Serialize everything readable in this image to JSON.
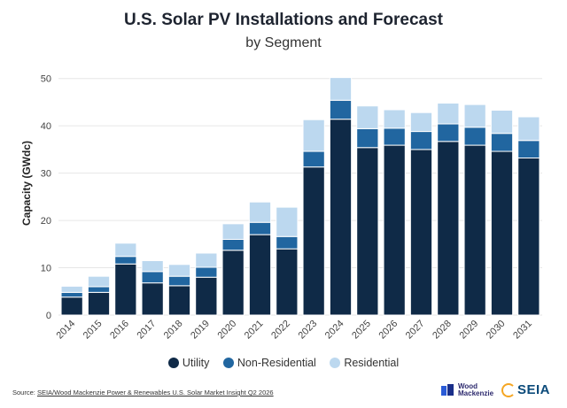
{
  "header": {
    "title": "U.S. Solar PV Installations and Forecast",
    "subtitle": "by Segment"
  },
  "legend": {
    "items": [
      {
        "label": "Utility",
        "color": "#0f2a47"
      },
      {
        "label": "Non-Residential",
        "color": "#2166a0"
      },
      {
        "label": "Residential",
        "color": "#bcd8ef"
      }
    ]
  },
  "footer": {
    "source_prefix": "Source: ",
    "source_text": "SEIA/Wood Mackenzie Power & Renewables U.S. Solar Market Insight Q2 2026",
    "wm_logo_line1": "Wood",
    "wm_logo_line2": "Mackenzie",
    "seia_logo": "SEIA"
  },
  "chart_data": {
    "type": "bar",
    "stacked": true,
    "title": "U.S. Solar PV Installations and Forecast",
    "subtitle": "by Segment",
    "xlabel": "",
    "ylabel": "Capacity (GWdc)",
    "ylim": [
      0,
      52
    ],
    "yticks": [
      0,
      10,
      20,
      30,
      40,
      50
    ],
    "grid": true,
    "legend_position": "bottom",
    "categories": [
      "2014",
      "2015",
      "2016",
      "2017",
      "2018",
      "2019",
      "2020",
      "2021",
      "2022",
      "2023",
      "2024",
      "2025",
      "2026",
      "2027",
      "2028",
      "2029",
      "2030",
      "2031"
    ],
    "series": [
      {
        "name": "Utility",
        "color": "#0f2a47",
        "values": [
          3.8,
          4.8,
          10.8,
          6.8,
          6.2,
          8.0,
          13.7,
          17.0,
          14.0,
          31.3,
          41.4,
          35.4,
          35.9,
          35.0,
          36.7,
          35.9,
          34.6,
          33.2
        ]
      },
      {
        "name": "Non-Residential",
        "color": "#2166a0",
        "values": [
          1.0,
          1.2,
          1.6,
          2.4,
          2.0,
          2.1,
          2.3,
          2.6,
          2.6,
          3.3,
          4.0,
          4.0,
          3.6,
          3.8,
          3.7,
          3.8,
          3.8,
          3.7
        ]
      },
      {
        "name": "Residential",
        "color": "#bcd8ef",
        "values": [
          1.3,
          2.2,
          2.8,
          2.3,
          2.5,
          3.0,
          3.3,
          4.3,
          6.2,
          6.7,
          4.8,
          4.8,
          3.9,
          4.0,
          4.4,
          4.8,
          4.9,
          5.0
        ]
      }
    ]
  }
}
